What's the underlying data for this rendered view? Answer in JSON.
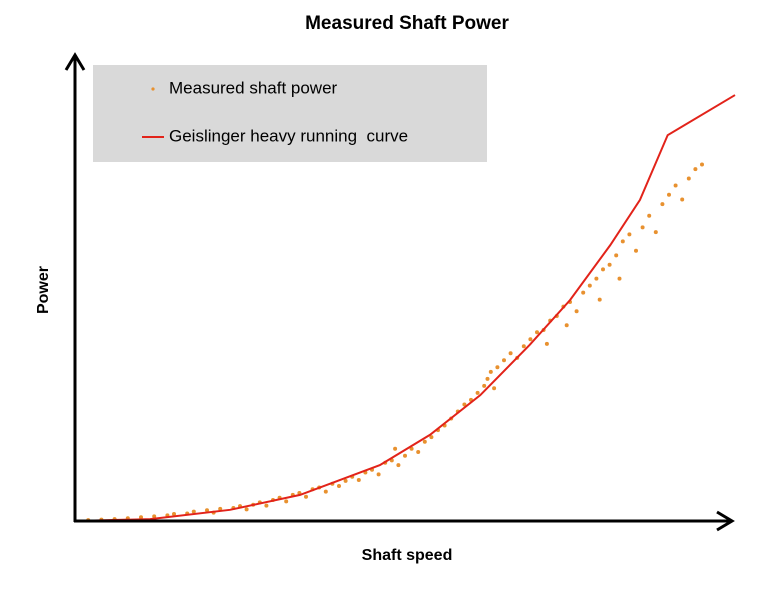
{
  "chart_data": {
    "type": "scatter",
    "title": "Measured Shaft Power",
    "x_label": "Shaft speed",
    "y_label": "Power",
    "xlim": [
      0,
      100
    ],
    "ylim": [
      0,
      100
    ],
    "series": [
      {
        "name": "Measured shaft power",
        "type": "scatter",
        "color": "#e8912f",
        "x": [
          2,
          4,
          6,
          8,
          10,
          12,
          14,
          15,
          17,
          18,
          20,
          21,
          22,
          24,
          25,
          26,
          27,
          28,
          29,
          30,
          31,
          32,
          33,
          34,
          35,
          36,
          37,
          38,
          39,
          40,
          41,
          42,
          43,
          44,
          45,
          46,
          47,
          48,
          48.5,
          49,
          50,
          51,
          52,
          53,
          54,
          55,
          56,
          57,
          58,
          59,
          60,
          61,
          62,
          62.5,
          63,
          63.5,
          64,
          65,
          66,
          67,
          68,
          69,
          70,
          71,
          71.5,
          72,
          73,
          74,
          74.5,
          75,
          76,
          77,
          78,
          79,
          79.5,
          80,
          81,
          82,
          82.5,
          83,
          84,
          85,
          86,
          87,
          88,
          89,
          90,
          91,
          92,
          93,
          94,
          95
        ],
        "values": [
          0.2,
          0.3,
          0.4,
          0.6,
          0.8,
          1.0,
          1.2,
          1.5,
          1.6,
          2.0,
          2.3,
          1.8,
          2.6,
          2.8,
          3.2,
          2.5,
          3.5,
          4.0,
          3.3,
          4.5,
          5.0,
          4.2,
          5.6,
          6.0,
          5.2,
          6.8,
          7.2,
          6.3,
          8.0,
          7.5,
          8.6,
          9.5,
          8.8,
          10.4,
          11.0,
          10.0,
          12.5,
          13.0,
          15.5,
          12.0,
          14.0,
          15.5,
          14.8,
          17.0,
          18.0,
          19.5,
          20.5,
          22.0,
          23.5,
          25.0,
          26.0,
          27.5,
          29.0,
          30.5,
          32.0,
          28.5,
          33.0,
          34.5,
          36.0,
          35.0,
          37.5,
          39.0,
          40.5,
          41.0,
          38.0,
          43.0,
          44.0,
          46.0,
          42.0,
          47.0,
          45.0,
          49.0,
          50.5,
          52.0,
          47.5,
          54.0,
          55.0,
          57.0,
          52.0,
          60.0,
          61.5,
          58.0,
          63.0,
          65.5,
          62.0,
          68.0,
          70.0,
          72.0,
          69.0,
          73.5,
          75.5,
          76.5
        ]
      },
      {
        "name": "Geislinger heavy running  curve",
        "type": "line",
        "color": "#e2231a",
        "x": [
          0,
          11.4,
          23.5,
          34.1,
          46.2,
          53.8,
          61.4,
          68.9,
          75.0,
          81.1,
          85.6,
          89.8,
          100
        ],
        "values": [
          0,
          0.4,
          2.4,
          5.6,
          12.0,
          18.5,
          27.0,
          37.8,
          47.4,
          59.2,
          68.9,
          82.8,
          91.4
        ]
      }
    ]
  }
}
